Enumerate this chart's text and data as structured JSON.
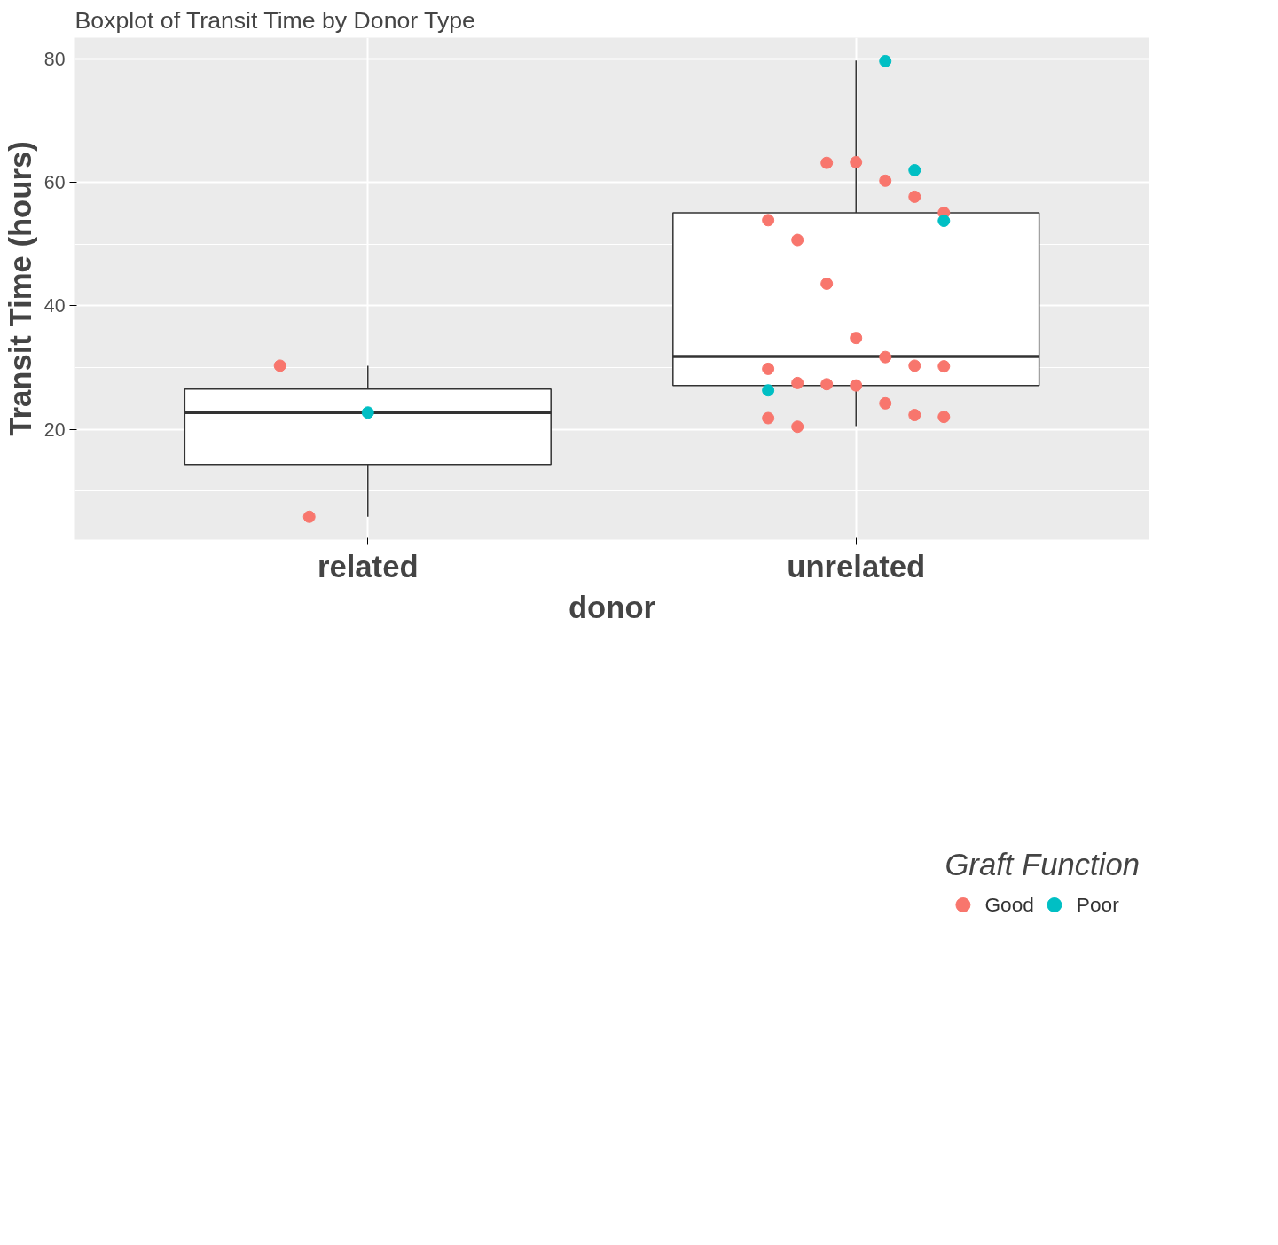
{
  "chart_data": {
    "type": "box",
    "title": "Boxplot of Transit Time by Donor Type",
    "xlabel": "donor",
    "ylabel": "Transit Time (hours)",
    "legend_title": "Graft Function",
    "categories": [
      "related",
      "unrelated"
    ],
    "boxes": [
      {
        "low": 5.8,
        "q1": 14.3,
        "median": 22.7,
        "q3": 26.5,
        "high": 30.3
      },
      {
        "low": 20.5,
        "q1": 27.1,
        "median": 31.8,
        "q3": 55.1,
        "high": 79.8
      }
    ],
    "series": [
      {
        "name": "Good",
        "type": "scatter",
        "color": "#f8766d",
        "x": [
          "related",
          "related",
          "unrelated",
          "unrelated",
          "unrelated",
          "unrelated",
          "unrelated",
          "unrelated",
          "unrelated",
          "unrelated",
          "unrelated",
          "unrelated",
          "unrelated",
          "unrelated",
          "unrelated",
          "unrelated",
          "unrelated",
          "unrelated",
          "unrelated",
          "unrelated",
          "unrelated",
          "unrelated",
          "unrelated"
        ],
        "values": [
          30.3,
          5.8,
          63.2,
          63.3,
          60.3,
          57.7,
          55.1,
          53.9,
          50.7,
          43.6,
          34.8,
          31.7,
          30.3,
          30.2,
          29.8,
          27.5,
          27.3,
          27.1,
          24.2,
          22.3,
          22.0,
          21.8,
          20.4
        ]
      },
      {
        "name": "Poor",
        "type": "scatter",
        "color": "#00bfc4",
        "x": [
          "related",
          "unrelated",
          "unrelated",
          "unrelated",
          "unrelated"
        ],
        "values": [
          22.7,
          79.7,
          62.0,
          53.8,
          26.3
        ]
      }
    ],
    "ylim": [
      2.1,
      83.5
    ],
    "yticks": [
      20,
      40,
      60,
      80
    ],
    "grid": true,
    "legend": "bottom",
    "marker": "circle"
  }
}
